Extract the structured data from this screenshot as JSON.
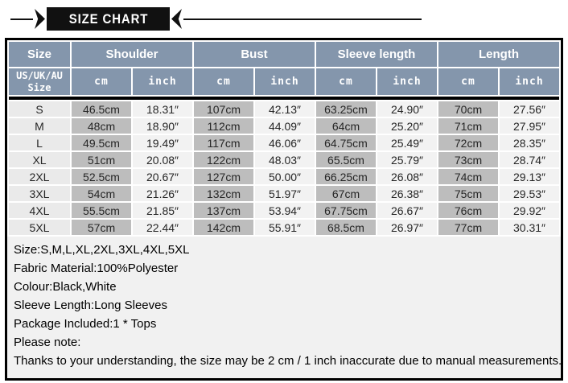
{
  "banner": {
    "title": "SIZE CHART"
  },
  "table": {
    "groups": [
      {
        "label": "Size",
        "span": 1
      },
      {
        "label": "Shoulder",
        "span": 2
      },
      {
        "label": "Bust",
        "span": 2
      },
      {
        "label": "Sleeve length",
        "span": 2
      },
      {
        "label": "Length",
        "span": 2
      }
    ],
    "subheader": {
      "size_label": "US/UK/AU\nSize",
      "unit_cm": "cm",
      "unit_inch": "inch"
    },
    "rows": [
      {
        "size": "S",
        "cells": [
          "46.5cm",
          "18.31″",
          "107cm",
          "42.13″",
          "63.25cm",
          "24.90″",
          "70cm",
          "27.56″"
        ]
      },
      {
        "size": "M",
        "cells": [
          "48cm",
          "18.90″",
          "112cm",
          "44.09″",
          "64cm",
          "25.20″",
          "71cm",
          "27.95″"
        ]
      },
      {
        "size": "L",
        "cells": [
          "49.5cm",
          "19.49″",
          "117cm",
          "46.06″",
          "64.75cm",
          "25.49″",
          "72cm",
          "28.35″"
        ]
      },
      {
        "size": "XL",
        "cells": [
          "51cm",
          "20.08″",
          "122cm",
          "48.03″",
          "65.5cm",
          "25.79″",
          "73cm",
          "28.74″"
        ]
      },
      {
        "size": "2XL",
        "cells": [
          "52.5cm",
          "20.67″",
          "127cm",
          "50.00″",
          "66.25cm",
          "26.08″",
          "74cm",
          "29.13″"
        ]
      },
      {
        "size": "3XL",
        "cells": [
          "54cm",
          "21.26″",
          "132cm",
          "51.97″",
          "67cm",
          "26.38″",
          "75cm",
          "29.53″"
        ]
      },
      {
        "size": "4XL",
        "cells": [
          "55.5cm",
          "21.85″",
          "137cm",
          "53.94″",
          "67.75cm",
          "26.67″",
          "76cm",
          "29.92″"
        ]
      },
      {
        "size": "5XL",
        "cells": [
          "57cm",
          "22.44″",
          "142cm",
          "55.91″",
          "68.5cm",
          "26.97″",
          "77cm",
          "30.31″"
        ]
      }
    ]
  },
  "notes": {
    "lines": [
      "Size:S,M,L,XL,2XL,3XL,4XL,5XL",
      "Fabric Material:100%Polyester",
      "Colour:Black,White",
      "Sleeve Length:Long Sleeves",
      "Package Included:1 * Tops",
      "Please note:",
      "Thanks to your understanding, the size may be 2 cm / 1 inch inaccurate due to manual measurements."
    ]
  },
  "colors": {
    "header_bg": "#8496ac",
    "cm_bg": "#bdbdbd",
    "inch_bg": "#f2f2f2",
    "size_bg": "#eaeaea",
    "notes_bg": "#f1f1f1",
    "ribbon_bg": "#111111"
  }
}
